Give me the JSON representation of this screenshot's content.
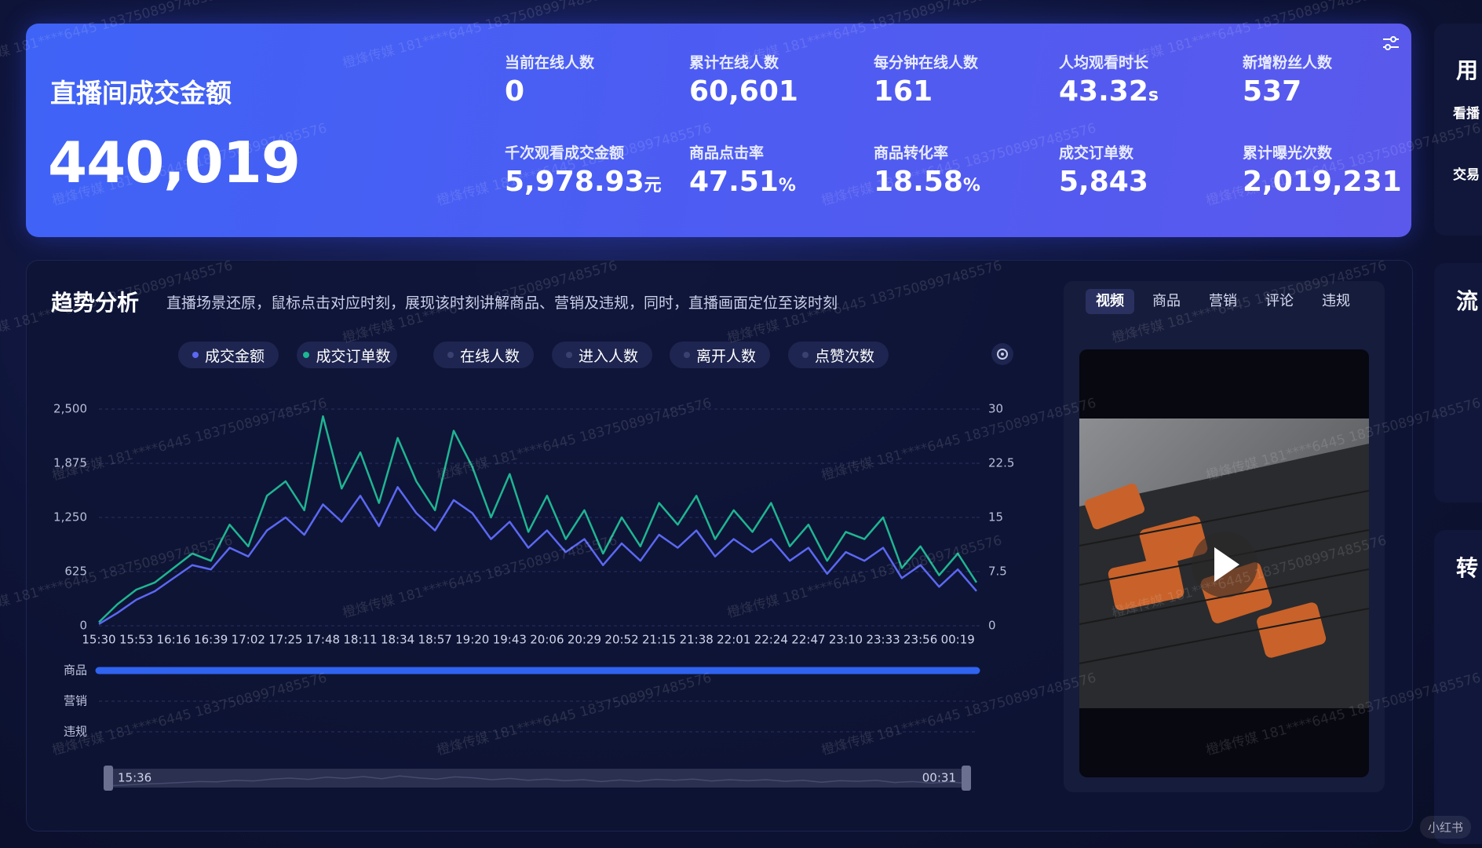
{
  "header": {
    "title": "直播间成交金额",
    "value": "440,019",
    "metrics": [
      {
        "label": "当前在线人数",
        "value": "0"
      },
      {
        "label": "累计在线人数",
        "value": "60,601"
      },
      {
        "label": "每分钟在线人数",
        "value": "161"
      },
      {
        "label": "人均观看时长",
        "value": "43.32",
        "unit": "s"
      },
      {
        "label": "新增粉丝人数",
        "value": "537"
      },
      {
        "label": "千次观看成交金额",
        "value": "5,978.93",
        "unit": "元"
      },
      {
        "label": "商品点击率",
        "value": "47.51",
        "unit": "%"
      },
      {
        "label": "商品转化率",
        "value": "18.58",
        "unit": "%"
      },
      {
        "label": "成交订单数",
        "value": "5,843"
      },
      {
        "label": "累计曝光次数",
        "value": "2,019,231"
      }
    ]
  },
  "trend": {
    "title": "趋势分析",
    "description": "直播场景还原，鼠标点击对应时刻，展现该时刻讲解商品、营销及违规，同时，直播画面定位至该时刻",
    "rows": [
      "商品",
      "营销",
      "违规"
    ],
    "range": [
      "15:36",
      "00:31"
    ]
  },
  "chart_data": {
    "type": "line",
    "categories": [
      "15:30",
      null,
      "15:53",
      null,
      "16:16",
      null,
      "16:39",
      null,
      "17:02",
      null,
      "17:25",
      null,
      "17:48",
      null,
      "18:11",
      null,
      "18:34",
      null,
      "18:57",
      null,
      "19:20",
      null,
      "19:43",
      null,
      "20:06",
      null,
      "20:29",
      null,
      "20:52",
      null,
      "21:15",
      null,
      "21:38",
      null,
      "22:01",
      null,
      "22:24",
      null,
      "22:47",
      null,
      "23:10",
      null,
      "23:33",
      null,
      "23:56",
      null,
      "00:19",
      null
    ],
    "series": [
      {
        "name": "成交金额",
        "color": "#5b68f2",
        "values": [
          20,
          150,
          300,
          400,
          550,
          700,
          650,
          900,
          800,
          1100,
          1250,
          1050,
          1400,
          1200,
          1500,
          1150,
          1600,
          1300,
          1100,
          1450,
          1300,
          1000,
          1200,
          900,
          1100,
          850,
          1000,
          700,
          950,
          750,
          1050,
          900,
          1100,
          800,
          1000,
          850,
          1000,
          750,
          900,
          600,
          850,
          750,
          900,
          550,
          700,
          450,
          650,
          400
        ]
      },
      {
        "name": "成交订单数",
        "color": "#1fb592",
        "axis": "y2",
        "values": [
          0.5,
          3,
          5,
          6,
          8,
          10,
          9,
          14,
          11,
          18,
          20,
          16,
          29,
          19,
          24,
          17,
          26,
          20,
          16,
          27,
          22,
          15,
          21,
          13,
          18,
          12,
          16,
          10,
          15,
          11,
          17,
          14,
          18,
          12,
          16,
          13,
          17,
          11,
          14,
          9,
          13,
          12,
          15,
          8,
          11,
          7,
          10,
          6
        ]
      }
    ],
    "inactive_legend": [
      "在线人数",
      "进入人数",
      "离开人数",
      "点赞次数"
    ],
    "ylim": [
      0,
      2500
    ],
    "yticks": [
      0,
      625,
      {
        "value": 1250,
        "label": "1,250"
      },
      {
        "value": 1875,
        "label": "1,875"
      },
      {
        "value": 2500,
        "label": "2,500"
      }
    ],
    "y2lim": [
      0,
      30
    ],
    "y2ticks": [
      0,
      7.5,
      15,
      22.5,
      30
    ],
    "grid": true
  },
  "video_panel": {
    "tabs": [
      "视频",
      "商品",
      "营销",
      "评论",
      "违规"
    ]
  },
  "side_panel": {
    "labels": [
      "用",
      "看播",
      "交易",
      "流",
      "转"
    ]
  },
  "watermark": "橙烽传媒 181****6445 1837508997485576",
  "badge": "小红书"
}
